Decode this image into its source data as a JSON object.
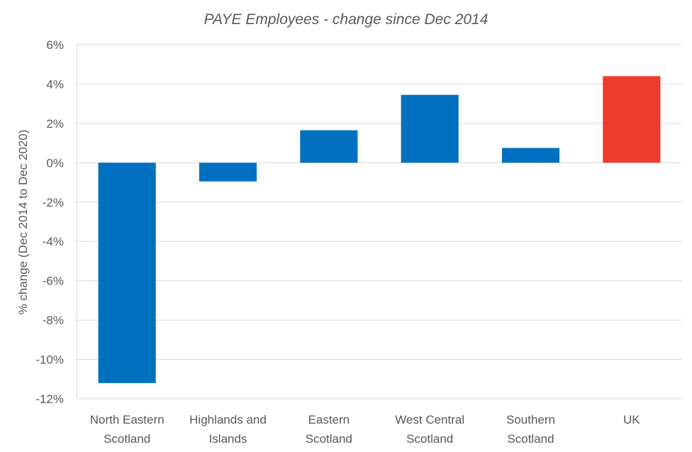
{
  "chart_data": {
    "type": "bar",
    "title": "PAYE Employees - change since Dec 2014",
    "ylabel": "% change (Dec 2014 to Dec 2020)",
    "xlabel": "",
    "ylim": [
      -12,
      6
    ],
    "ytick_step": 2,
    "ytick_labels": [
      "6%",
      "4%",
      "2%",
      "0%",
      "-2%",
      "-4%",
      "-6%",
      "-8%",
      "-10%",
      "-12%"
    ],
    "grid": true,
    "categories": [
      [
        "North Eastern",
        "Scotland"
      ],
      [
        "Highlands and",
        "Islands"
      ],
      [
        "Eastern",
        "Scotland"
      ],
      [
        "West Central",
        "Scotland"
      ],
      [
        "Southern",
        "Scotland"
      ],
      [
        "UK"
      ]
    ],
    "values": [
      -11.2,
      -0.95,
      1.65,
      3.45,
      0.75,
      4.4
    ],
    "colors": [
      "#0070C0",
      "#0070C0",
      "#0070C0",
      "#0070C0",
      "#0070C0",
      "#EE3B2D"
    ]
  }
}
